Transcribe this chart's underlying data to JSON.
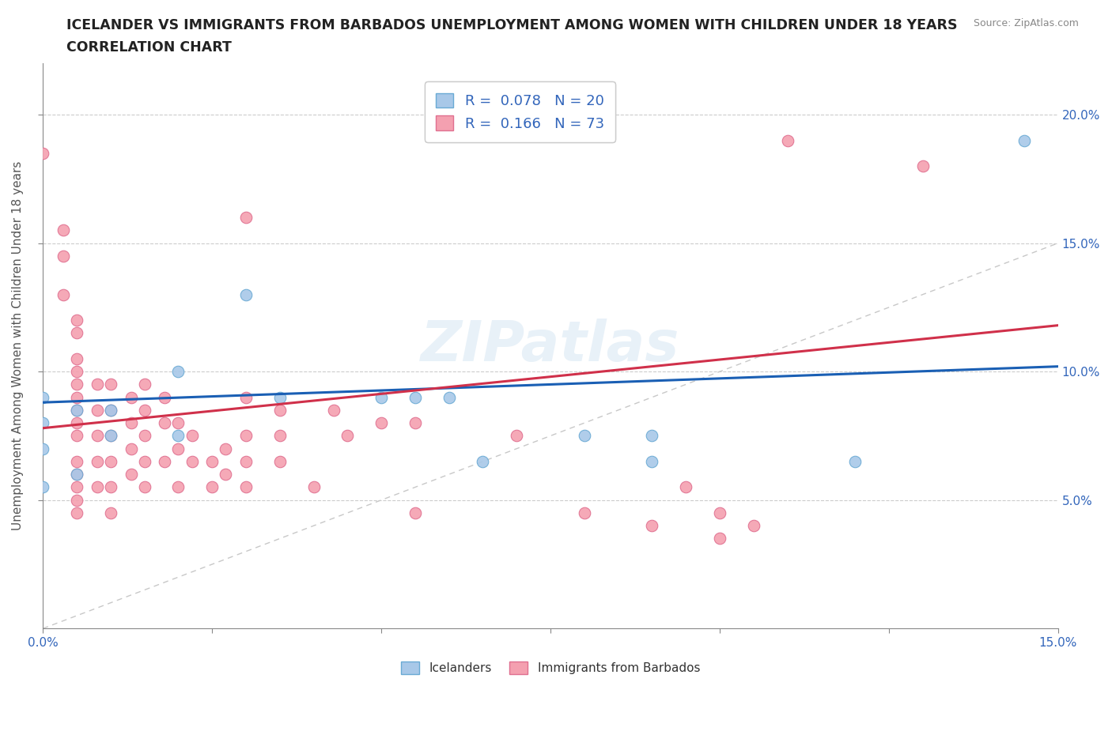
{
  "title_line1": "ICELANDER VS IMMIGRANTS FROM BARBADOS UNEMPLOYMENT AMONG WOMEN WITH CHILDREN UNDER 18 YEARS",
  "title_line2": "CORRELATION CHART",
  "source": "Source: ZipAtlas.com",
  "ylabel": "Unemployment Among Women with Children Under 18 years",
  "xlim": [
    0,
    0.15
  ],
  "ylim": [
    0,
    0.22
  ],
  "icelander_color": "#a8c8e8",
  "barbados_color": "#f4a0b0",
  "icelander_edge": "#6aaad4",
  "barbados_edge": "#e07090",
  "line_icelander_color": "#1a5fb4",
  "line_barbados_color": "#d0304a",
  "line_ref_color": "#c8c8c8",
  "background_color": "#ffffff",
  "icelander_data": [
    [
      0.0,
      0.09
    ],
    [
      0.0,
      0.08
    ],
    [
      0.0,
      0.07
    ],
    [
      0.0,
      0.055
    ],
    [
      0.005,
      0.085
    ],
    [
      0.005,
      0.06
    ],
    [
      0.01,
      0.085
    ],
    [
      0.01,
      0.075
    ],
    [
      0.02,
      0.1
    ],
    [
      0.02,
      0.075
    ],
    [
      0.03,
      0.13
    ],
    [
      0.035,
      0.09
    ],
    [
      0.05,
      0.09
    ],
    [
      0.055,
      0.09
    ],
    [
      0.06,
      0.09
    ],
    [
      0.065,
      0.065
    ],
    [
      0.08,
      0.075
    ],
    [
      0.09,
      0.075
    ],
    [
      0.09,
      0.065
    ],
    [
      0.12,
      0.065
    ],
    [
      0.145,
      0.19
    ]
  ],
  "barbados_data": [
    [
      0.0,
      0.185
    ],
    [
      0.003,
      0.155
    ],
    [
      0.003,
      0.145
    ],
    [
      0.003,
      0.13
    ],
    [
      0.005,
      0.12
    ],
    [
      0.005,
      0.115
    ],
    [
      0.005,
      0.105
    ],
    [
      0.005,
      0.1
    ],
    [
      0.005,
      0.095
    ],
    [
      0.005,
      0.09
    ],
    [
      0.005,
      0.085
    ],
    [
      0.005,
      0.08
    ],
    [
      0.005,
      0.075
    ],
    [
      0.005,
      0.065
    ],
    [
      0.005,
      0.06
    ],
    [
      0.005,
      0.055
    ],
    [
      0.005,
      0.05
    ],
    [
      0.005,
      0.045
    ],
    [
      0.008,
      0.095
    ],
    [
      0.008,
      0.085
    ],
    [
      0.008,
      0.075
    ],
    [
      0.008,
      0.065
    ],
    [
      0.008,
      0.055
    ],
    [
      0.01,
      0.095
    ],
    [
      0.01,
      0.085
    ],
    [
      0.01,
      0.075
    ],
    [
      0.01,
      0.065
    ],
    [
      0.01,
      0.055
    ],
    [
      0.01,
      0.045
    ],
    [
      0.013,
      0.09
    ],
    [
      0.013,
      0.08
    ],
    [
      0.013,
      0.07
    ],
    [
      0.013,
      0.06
    ],
    [
      0.015,
      0.095
    ],
    [
      0.015,
      0.085
    ],
    [
      0.015,
      0.075
    ],
    [
      0.015,
      0.065
    ],
    [
      0.015,
      0.055
    ],
    [
      0.018,
      0.09
    ],
    [
      0.018,
      0.08
    ],
    [
      0.018,
      0.065
    ],
    [
      0.02,
      0.08
    ],
    [
      0.02,
      0.07
    ],
    [
      0.02,
      0.055
    ],
    [
      0.022,
      0.075
    ],
    [
      0.022,
      0.065
    ],
    [
      0.025,
      0.065
    ],
    [
      0.025,
      0.055
    ],
    [
      0.027,
      0.07
    ],
    [
      0.027,
      0.06
    ],
    [
      0.03,
      0.16
    ],
    [
      0.03,
      0.09
    ],
    [
      0.03,
      0.075
    ],
    [
      0.03,
      0.065
    ],
    [
      0.03,
      0.055
    ],
    [
      0.035,
      0.085
    ],
    [
      0.035,
      0.075
    ],
    [
      0.035,
      0.065
    ],
    [
      0.04,
      0.055
    ],
    [
      0.043,
      0.085
    ],
    [
      0.045,
      0.075
    ],
    [
      0.05,
      0.08
    ],
    [
      0.055,
      0.08
    ],
    [
      0.055,
      0.045
    ],
    [
      0.07,
      0.075
    ],
    [
      0.08,
      0.045
    ],
    [
      0.09,
      0.04
    ],
    [
      0.095,
      0.055
    ],
    [
      0.1,
      0.045
    ],
    [
      0.1,
      0.035
    ],
    [
      0.105,
      0.04
    ],
    [
      0.11,
      0.19
    ],
    [
      0.13,
      0.18
    ]
  ],
  "icelander_trendline": [
    [
      0.0,
      0.088
    ],
    [
      0.15,
      0.102
    ]
  ],
  "barbados_trendline": [
    [
      0.0,
      0.078
    ],
    [
      0.15,
      0.118
    ]
  ],
  "ref_line_x": [
    0.0,
    0.15
  ],
  "ref_line_y": [
    0.0,
    0.15
  ]
}
